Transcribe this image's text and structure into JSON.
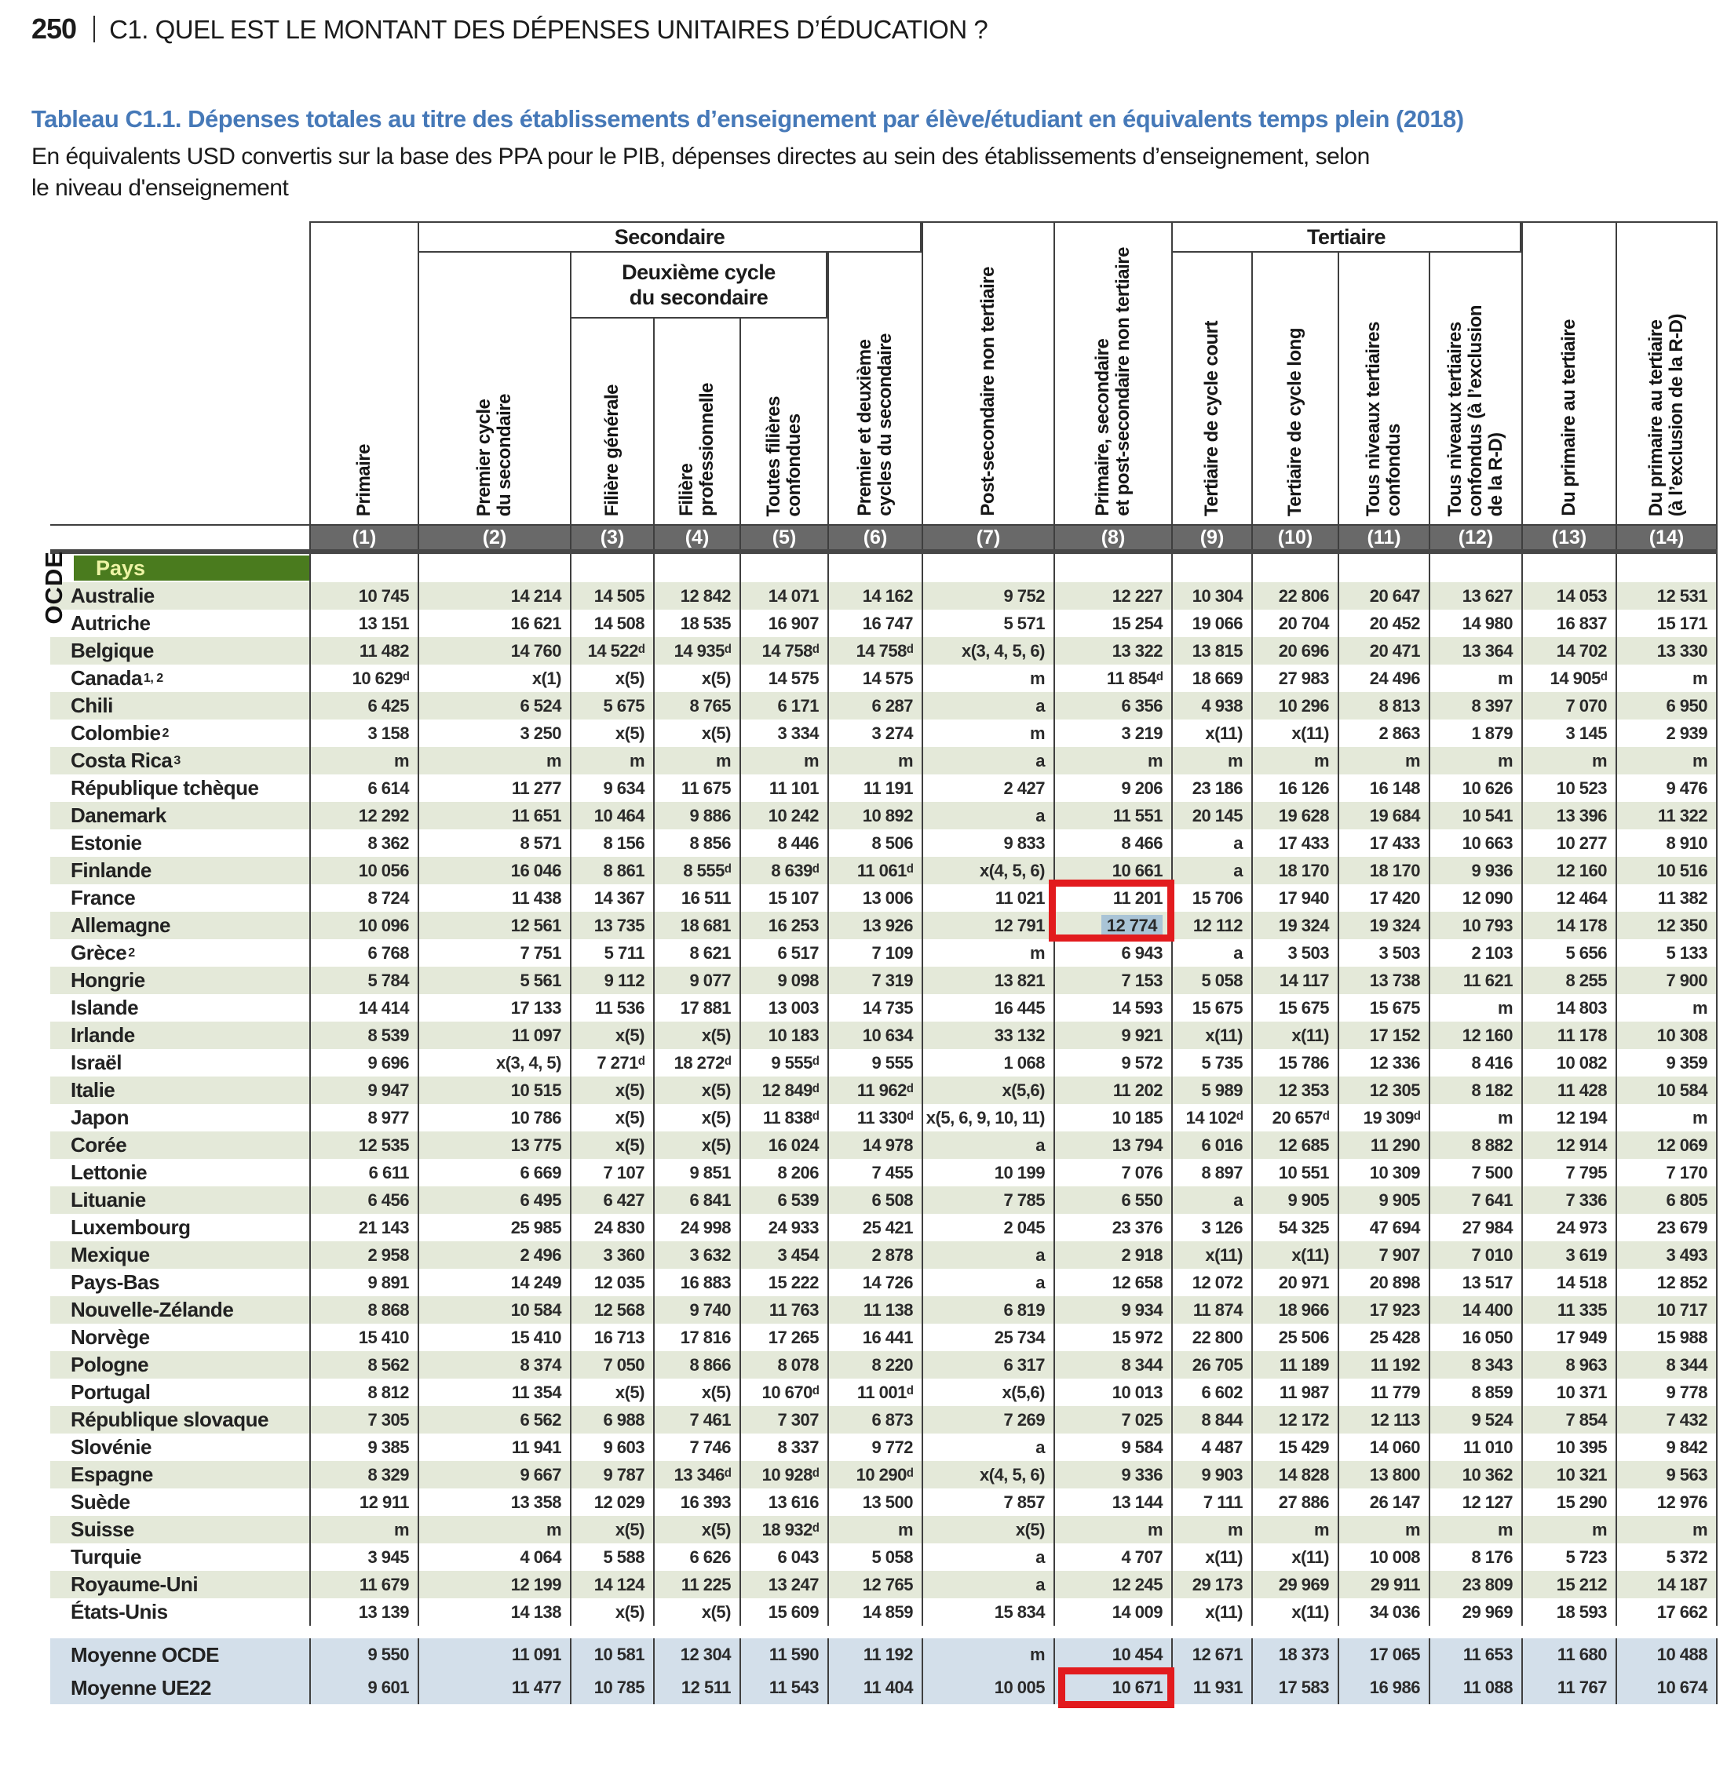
{
  "page": {
    "number": "250",
    "header": "C1. QUEL EST LE MONTANT DES DÉPENSES UNITAIRES D’ÉDUCATION ?"
  },
  "table": {
    "title": "Tableau C1.1. Dépenses totales au titre des établissements d’enseignement par élève/étudiant en équivalents temps plein (2018)",
    "subtitle": "En équivalents USD convertis sur la base des PPA pour le PIB, dépenses directes au sein des établissements d’enseignement, selon\nle niveau d'enseignement",
    "side_label": "OCDE",
    "pays_header": "Pays",
    "groups": {
      "secondaire": "Secondaire",
      "deuxieme_cycle": "Deuxième cycle\ndu secondaire",
      "tertiaire": "Tertiaire"
    },
    "columns": [
      {
        "label": "Primaire",
        "num": "(1)"
      },
      {
        "label": "Premier cycle\ndu secondaire",
        "num": "(2)"
      },
      {
        "label": "Filière générale",
        "num": "(3)"
      },
      {
        "label": "Filière\nprofessionnelle",
        "num": "(4)"
      },
      {
        "label": "Toutes filières\nconfondues",
        "num": "(5)"
      },
      {
        "label": "Premier et deuxième\ncycles du secondaire",
        "num": "(6)"
      },
      {
        "label": "Post-secondaire non tertiaire",
        "num": "(7)"
      },
      {
        "label": "Primaire, secondaire\net post-secondaire non tertiaire",
        "num": "(8)"
      },
      {
        "label": "Tertiaire de cycle court",
        "num": "(9)"
      },
      {
        "label": "Tertiaire de cycle long",
        "num": "(10)"
      },
      {
        "label": "Tous niveaux tertiaires\nconfondus",
        "num": "(11)"
      },
      {
        "label": "Tous niveaux tertiaires\nconfondus (à l’exclusion\nde la R-D)",
        "num": "(12)"
      },
      {
        "label": "Du primaire au tertiaire",
        "num": "(13)"
      },
      {
        "label": "Du primaire au tertiaire\n(à l’exclusion de la R-D)",
        "num": "(14)"
      }
    ],
    "rows": [
      {
        "name": "Australie",
        "sup": "",
        "values": [
          "10 745",
          "14 214",
          "14 505",
          "12 842",
          "14 071",
          "14 162",
          "9 752",
          "12 227",
          "10 304",
          "22 806",
          "20 647",
          "13 627",
          "14 053",
          "12 531"
        ]
      },
      {
        "name": "Autriche",
        "sup": "",
        "values": [
          "13 151",
          "16 621",
          "14 508",
          "18 535",
          "16 907",
          "16 747",
          "5 571",
          "15 254",
          "19 066",
          "20 704",
          "20 452",
          "14 980",
          "16 837",
          "15 171"
        ]
      },
      {
        "name": "Belgique",
        "sup": "",
        "values": [
          "11 482",
          "14 760",
          "14 522ᵈ",
          "14 935ᵈ",
          "14 758ᵈ",
          "14 758ᵈ",
          "x(3, 4, 5, 6)",
          "13 322",
          "13 815",
          "20 696",
          "20 471",
          "13 364",
          "14 702",
          "13 330"
        ]
      },
      {
        "name": "Canada",
        "sup": "1, 2",
        "values": [
          "10 629ᵈ",
          "x(1)",
          "x(5)",
          "x(5)",
          "14 575",
          "14 575",
          "m",
          "11 854ᵈ",
          "18 669",
          "27 983",
          "24 496",
          "m",
          "14 905ᵈ",
          "m"
        ]
      },
      {
        "name": "Chili",
        "sup": "",
        "values": [
          "6 425",
          "6 524",
          "5 675",
          "8 765",
          "6 171",
          "6 287",
          "a",
          "6 356",
          "4 938",
          "10 296",
          "8 813",
          "8 397",
          "7 070",
          "6 950"
        ]
      },
      {
        "name": "Colombie",
        "sup": "2",
        "values": [
          "3 158",
          "3 250",
          "x(5)",
          "x(5)",
          "3 334",
          "3 274",
          "m",
          "3 219",
          "x(11)",
          "x(11)",
          "2 863",
          "1 879",
          "3 145",
          "2 939"
        ]
      },
      {
        "name": "Costa Rica",
        "sup": "3",
        "values": [
          "m",
          "m",
          "m",
          "m",
          "m",
          "m",
          "a",
          "m",
          "m",
          "m",
          "m",
          "m",
          "m",
          "m"
        ]
      },
      {
        "name": "République tchèque",
        "sup": "",
        "values": [
          "6 614",
          "11 277",
          "9 634",
          "11 675",
          "11 101",
          "11 191",
          "2 427",
          "9 206",
          "23 186",
          "16 126",
          "16 148",
          "10 626",
          "10 523",
          "9 476"
        ]
      },
      {
        "name": "Danemark",
        "sup": "",
        "values": [
          "12 292",
          "11 651",
          "10 464",
          "9 886",
          "10 242",
          "10 892",
          "a",
          "11 551",
          "20 145",
          "19 628",
          "19 684",
          "10 541",
          "13 396",
          "11 322"
        ]
      },
      {
        "name": "Estonie",
        "sup": "",
        "values": [
          "8 362",
          "8 571",
          "8 156",
          "8 856",
          "8 446",
          "8 506",
          "9 833",
          "8 466",
          "a",
          "17 433",
          "17 433",
          "10 663",
          "10 277",
          "8 910"
        ]
      },
      {
        "name": "Finlande",
        "sup": "",
        "values": [
          "10 056",
          "16 046",
          "8 861",
          "8 555ᵈ",
          "8 639ᵈ",
          "11 061ᵈ",
          "x(4, 5, 6)",
          "10 661",
          "a",
          "18 170",
          "18 170",
          "9 936",
          "12 160",
          "10 516"
        ]
      },
      {
        "name": "France",
        "sup": "",
        "values": [
          "8 724",
          "11 438",
          "14 367",
          "16 511",
          "15 107",
          "13 006",
          "11 021",
          "11 201",
          "15 706",
          "17 940",
          "17 420",
          "12 090",
          "12 464",
          "11 382"
        ]
      },
      {
        "name": "Allemagne",
        "sup": "",
        "values": [
          "10 096",
          "12 561",
          "13 735",
          "18 681",
          "16 253",
          "13 926",
          "12 791",
          "12 774",
          "12 112",
          "19 324",
          "19 324",
          "10 793",
          "14 178",
          "12 350"
        ]
      },
      {
        "name": "Grèce",
        "sup": "2",
        "values": [
          "6 768",
          "7 751",
          "5 711",
          "8 621",
          "6 517",
          "7 109",
          "m",
          "6 943",
          "a",
          "3 503",
          "3 503",
          "2 103",
          "5 656",
          "5 133"
        ]
      },
      {
        "name": "Hongrie",
        "sup": "",
        "values": [
          "5 784",
          "5 561",
          "9 112",
          "9 077",
          "9 098",
          "7 319",
          "13 821",
          "7 153",
          "5 058",
          "14 117",
          "13 738",
          "11 621",
          "8 255",
          "7 900"
        ]
      },
      {
        "name": "Islande",
        "sup": "",
        "values": [
          "14 414",
          "17 133",
          "11 536",
          "17 881",
          "13 003",
          "14 735",
          "16 445",
          "14 593",
          "15 675",
          "15 675",
          "15 675",
          "m",
          "14 803",
          "m"
        ]
      },
      {
        "name": "Irlande",
        "sup": "",
        "values": [
          "8 539",
          "11 097",
          "x(5)",
          "x(5)",
          "10 183",
          "10 634",
          "33 132",
          "9 921",
          "x(11)",
          "x(11)",
          "17 152",
          "12 160",
          "11 178",
          "10 308"
        ]
      },
      {
        "name": "Israël",
        "sup": "",
        "values": [
          "9 696",
          "x(3, 4, 5)",
          "7 271ᵈ",
          "18 272ᵈ",
          "9 555ᵈ",
          "9 555",
          "1 068",
          "9 572",
          "5 735",
          "15 786",
          "12 336",
          "8 416",
          "10 082",
          "9 359"
        ]
      },
      {
        "name": "Italie",
        "sup": "",
        "values": [
          "9 947",
          "10 515",
          "x(5)",
          "x(5)",
          "12 849ᵈ",
          "11 962ᵈ",
          "x(5,6)",
          "11 202",
          "5 989",
          "12 353",
          "12 305",
          "8 182",
          "11 428",
          "10 584"
        ]
      },
      {
        "name": "Japon",
        "sup": "",
        "values": [
          "8 977",
          "10 786",
          "x(5)",
          "x(5)",
          "11 838ᵈ",
          "11 330ᵈ",
          "x(5, 6, 9, 10, 11)",
          "10 185",
          "14 102ᵈ",
          "20 657ᵈ",
          "19 309ᵈ",
          "m",
          "12 194",
          "m"
        ]
      },
      {
        "name": "Corée",
        "sup": "",
        "values": [
          "12 535",
          "13 775",
          "x(5)",
          "x(5)",
          "16 024",
          "14 978",
          "a",
          "13 794",
          "6 016",
          "12 685",
          "11 290",
          "8 882",
          "12 914",
          "12 069"
        ]
      },
      {
        "name": "Lettonie",
        "sup": "",
        "values": [
          "6 611",
          "6 669",
          "7 107",
          "9 851",
          "8 206",
          "7 455",
          "10 199",
          "7 076",
          "8 897",
          "10 551",
          "10 309",
          "7 500",
          "7 795",
          "7 170"
        ]
      },
      {
        "name": "Lituanie",
        "sup": "",
        "values": [
          "6 456",
          "6 495",
          "6 427",
          "6 841",
          "6 539",
          "6 508",
          "7 785",
          "6 550",
          "a",
          "9 905",
          "9 905",
          "7 641",
          "7 336",
          "6 805"
        ]
      },
      {
        "name": "Luxembourg",
        "sup": "",
        "values": [
          "21 143",
          "25 985",
          "24 830",
          "24 998",
          "24 933",
          "25 421",
          "2 045",
          "23 376",
          "3 126",
          "54 325",
          "47 694",
          "27 984",
          "24 973",
          "23 679"
        ]
      },
      {
        "name": "Mexique",
        "sup": "",
        "values": [
          "2 958",
          "2 496",
          "3 360",
          "3 632",
          "3 454",
          "2 878",
          "a",
          "2 918",
          "x(11)",
          "x(11)",
          "7 907",
          "7 010",
          "3 619",
          "3 493"
        ]
      },
      {
        "name": "Pays-Bas",
        "sup": "",
        "values": [
          "9 891",
          "14 249",
          "12 035",
          "16 883",
          "15 222",
          "14 726",
          "a",
          "12 658",
          "12 072",
          "20 971",
          "20 898",
          "13 517",
          "14 518",
          "12 852"
        ]
      },
      {
        "name": "Nouvelle-Zélande",
        "sup": "",
        "values": [
          "8 868",
          "10 584",
          "12 568",
          "9 740",
          "11 763",
          "11 138",
          "6 819",
          "9 934",
          "11 874",
          "18 966",
          "17 923",
          "14 400",
          "11 335",
          "10 717"
        ]
      },
      {
        "name": "Norvège",
        "sup": "",
        "values": [
          "15 410",
          "15 410",
          "16 713",
          "17 816",
          "17 265",
          "16 441",
          "25 734",
          "15 972",
          "22 800",
          "25 506",
          "25 428",
          "16 050",
          "17 949",
          "15 988"
        ]
      },
      {
        "name": "Pologne",
        "sup": "",
        "values": [
          "8 562",
          "8 374",
          "7 050",
          "8 866",
          "8 078",
          "8 220",
          "6 317",
          "8 344",
          "26 705",
          "11 189",
          "11 192",
          "8 343",
          "8 963",
          "8 344"
        ]
      },
      {
        "name": "Portugal",
        "sup": "",
        "values": [
          "8 812",
          "11 354",
          "x(5)",
          "x(5)",
          "10 670ᵈ",
          "11 001ᵈ",
          "x(5,6)",
          "10 013",
          "6 602",
          "11 987",
          "11 779",
          "8 859",
          "10 371",
          "9 778"
        ]
      },
      {
        "name": "République slovaque",
        "sup": "",
        "values": [
          "7 305",
          "6 562",
          "6 988",
          "7 461",
          "7 307",
          "6 873",
          "7 269",
          "7 025",
          "8 844",
          "12 172",
          "12 113",
          "9 524",
          "7 854",
          "7 432"
        ]
      },
      {
        "name": "Slovénie",
        "sup": "",
        "values": [
          "9 385",
          "11 941",
          "9 603",
          "7 746",
          "8 337",
          "9 772",
          "a",
          "9 584",
          "4 487",
          "15 429",
          "14 060",
          "11 010",
          "10 395",
          "9 842"
        ]
      },
      {
        "name": "Espagne",
        "sup": "",
        "values": [
          "8 329",
          "9 667",
          "9 787",
          "13 346ᵈ",
          "10 928ᵈ",
          "10 290ᵈ",
          "x(4, 5, 6)",
          "9 336",
          "9 903",
          "14 828",
          "13 800",
          "10 362",
          "10 321",
          "9 563"
        ]
      },
      {
        "name": "Suède",
        "sup": "",
        "values": [
          "12 911",
          "13 358",
          "12 029",
          "16 393",
          "13 616",
          "13 500",
          "7 857",
          "13 144",
          "7 111",
          "27 886",
          "26 147",
          "12 127",
          "15 290",
          "12 976"
        ]
      },
      {
        "name": "Suisse",
        "sup": "",
        "values": [
          "m",
          "m",
          "x(5)",
          "x(5)",
          "18 932ᵈ",
          "m",
          "x(5)",
          "m",
          "m",
          "m",
          "m",
          "m",
          "m",
          "m"
        ]
      },
      {
        "name": "Turquie",
        "sup": "",
        "values": [
          "3 945",
          "4 064",
          "5 588",
          "6 626",
          "6 043",
          "5 058",
          "a",
          "4 707",
          "x(11)",
          "x(11)",
          "10 008",
          "8 176",
          "5 723",
          "5 372"
        ]
      },
      {
        "name": "Royaume-Uni",
        "sup": "",
        "values": [
          "11 679",
          "12 199",
          "14 124",
          "11 225",
          "13 247",
          "12 765",
          "a",
          "12 245",
          "29 173",
          "29 969",
          "29 911",
          "23 809",
          "15 212",
          "14 187"
        ]
      },
      {
        "name": "États-Unis",
        "sup": "",
        "values": [
          "13 139",
          "14 138",
          "x(5)",
          "x(5)",
          "15 609",
          "14 859",
          "15 834",
          "14 009",
          "x(11)",
          "x(11)",
          "34 036",
          "29 969",
          "18 593",
          "17 662"
        ]
      }
    ],
    "averages": [
      {
        "name": "Moyenne OCDE",
        "sup": "",
        "values": [
          "9 550",
          "11 091",
          "10 581",
          "12 304",
          "11 590",
          "11 192",
          "m",
          "10 454",
          "12 671",
          "18 373",
          "17 065",
          "11 653",
          "11 680",
          "10 488"
        ]
      },
      {
        "name": "Moyenne UE22",
        "sup": "",
        "values": [
          "9 601",
          "11 477",
          "10 785",
          "12 511",
          "11 543",
          "11 404",
          "10 005",
          "10 671",
          "11 931",
          "17 583",
          "16 986",
          "11 088",
          "11 767",
          "10 674"
        ]
      }
    ],
    "highlights": {
      "red_box_color": "#e21b1e",
      "selection_color": "#a9c4d6",
      "box_france_allemagne": {
        "rows": [
          "France",
          "Allemagne"
        ],
        "col": 8
      },
      "selected_cell": {
        "row": "Allemagne",
        "col": 8
      },
      "box_moyenne_ue22": {
        "row": "Moyenne UE22",
        "col": 8
      }
    }
  }
}
